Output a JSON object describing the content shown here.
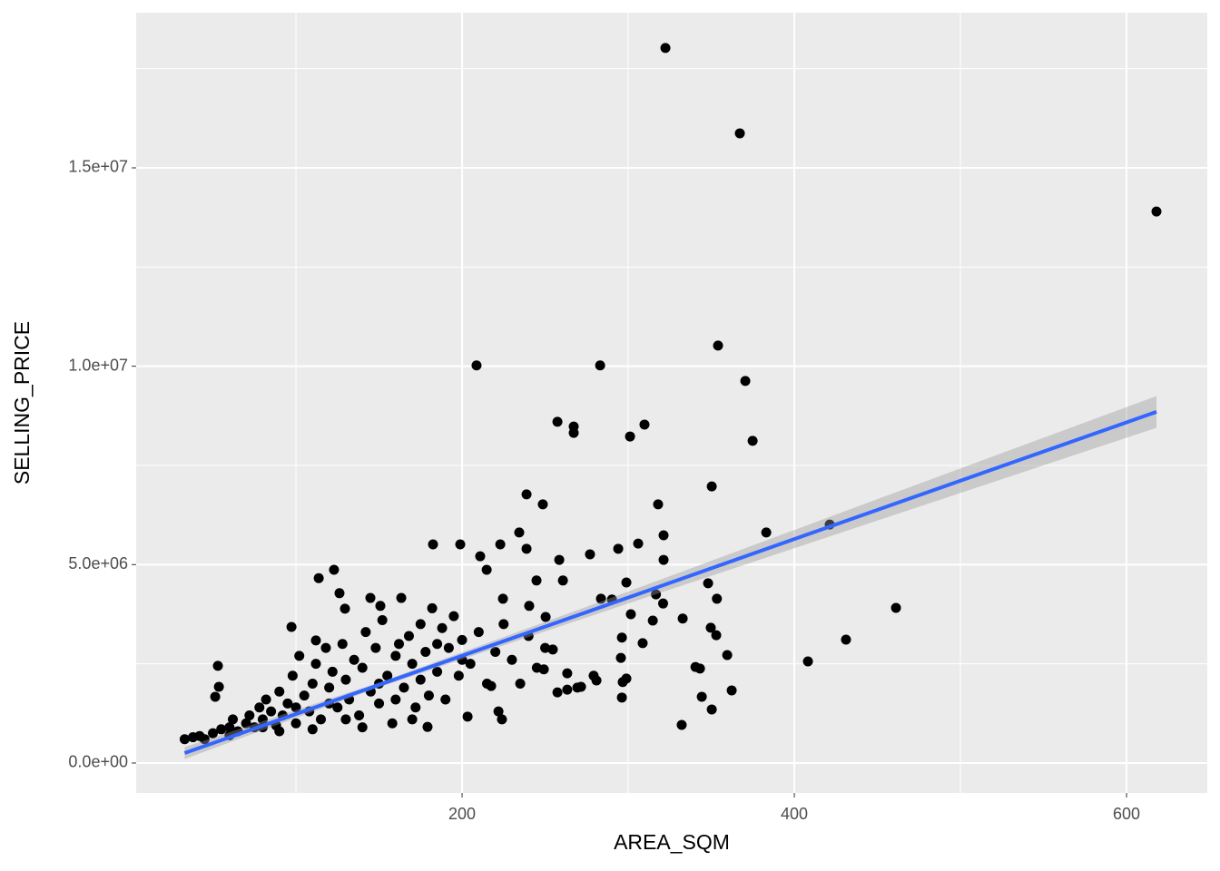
{
  "chart_data": {
    "type": "scatter",
    "x_label": "AREA_SQM",
    "y_label": "SELLING_PRICE",
    "x": [
      322.4,
      367.2,
      618,
      354.1,
      208.7,
      283.1,
      370.5,
      257.4,
      267.2,
      267.2,
      309.8,
      301.1,
      374.9,
      238.8,
      248.6,
      318,
      350.3,
      421.3,
      383.1,
      234.4,
      321.3,
      306,
      294,
      277,
      210.9,
      182.5,
      198.9,
      223,
      258.5,
      321.3,
      238.8,
      214.8,
      122.9,
      113.7,
      244.8,
      260.7,
      298.9,
      348.1,
      126.2,
      144.8,
      163.4,
      283.6,
      290.2,
      353.4,
      316.7,
      321,
      461.2,
      224.6,
      240.4,
      150.8,
      129.5,
      301.6,
      314.8,
      332.8,
      250.3,
      349.7,
      353,
      431.1,
      308.7,
      296.2,
      254.6,
      295.6,
      359.6,
      408.2,
      340.5,
      343.2,
      249.2,
      279.2,
      298.9,
      296.7,
      263.3,
      263.3,
      271.6,
      257.4,
      269.4,
      280.9,
      296.2,
      344.3,
      362.3,
      350.3,
      332.2,
      53,
      53.6,
      51.4,
      97.3,
      112,
      179.2,
      203.3,
      221.9,
      224,
      217.5,
      33,
      38,
      42,
      45,
      50,
      55,
      60,
      62,
      65,
      70,
      72,
      75,
      78,
      80,
      82,
      85,
      88,
      90,
      92,
      95,
      98,
      100,
      102,
      105,
      108,
      110,
      112,
      115,
      118,
      120,
      122,
      125,
      128,
      130,
      132,
      135,
      138,
      140,
      142,
      145,
      148,
      150,
      152,
      155,
      158,
      160,
      162,
      165,
      168,
      170,
      172,
      175,
      178,
      180,
      182,
      185,
      188,
      190,
      192,
      195,
      198,
      200,
      205,
      210,
      215,
      220,
      225,
      230,
      235,
      240,
      245,
      250,
      170,
      140,
      110,
      90,
      60,
      200,
      185,
      175,
      160,
      150,
      130,
      120,
      100,
      80
    ],
    "values": [
      18020000,
      15870000,
      13900000,
      10520000,
      10020000,
      10020000,
      9630000,
      8600000,
      8480000,
      8320000,
      8530000,
      8230000,
      8120000,
      6770000,
      6520000,
      6520000,
      6970000,
      6010000,
      5810000,
      5810000,
      5740000,
      5530000,
      5400000,
      5260000,
      5210000,
      5510000,
      5510000,
      5510000,
      5120000,
      5120000,
      5400000,
      4870000,
      4870000,
      4660000,
      4600000,
      4600000,
      4550000,
      4530000,
      4280000,
      4160000,
      4160000,
      4140000,
      4120000,
      4140000,
      4250000,
      4020000,
      3910000,
      4140000,
      3960000,
      3960000,
      3890000,
      3750000,
      3590000,
      3640000,
      3680000,
      3410000,
      3220000,
      3110000,
      3020000,
      3160000,
      2860000,
      2650000,
      2720000,
      2560000,
      2420000,
      2380000,
      2360000,
      2200000,
      2130000,
      2040000,
      2260000,
      1850000,
      1920000,
      1780000,
      1900000,
      2080000,
      1650000,
      1670000,
      1830000,
      1350000,
      960000,
      2450000,
      1920000,
      1670000,
      3430000,
      3090000,
      910000,
      1170000,
      1300000,
      1100000,
      1940000,
      600000,
      650000,
      680000,
      600000,
      750000,
      850000,
      900000,
      1100000,
      800000,
      1000000,
      1200000,
      900000,
      1400000,
      1100000,
      1600000,
      1300000,
      950000,
      1800000,
      1200000,
      1500000,
      2200000,
      1000000,
      2700000,
      1700000,
      1300000,
      2000000,
      2500000,
      1100000,
      2900000,
      1900000,
      2300000,
      1400000,
      3000000,
      2100000,
      1600000,
      2600000,
      1200000,
      2400000,
      3300000,
      1800000,
      2900000,
      1500000,
      3600000,
      2200000,
      1000000,
      2700000,
      3000000,
      1900000,
      3200000,
      2500000,
      1400000,
      3500000,
      2800000,
      1700000,
      3900000,
      2300000,
      3400000,
      1600000,
      2900000,
      3700000,
      2200000,
      3100000,
      2500000,
      3300000,
      2000000,
      2800000,
      3500000,
      2600000,
      2000000,
      3200000,
      2400000,
      2900000,
      1100000,
      900000,
      850000,
      800000,
      700000,
      2600000,
      3000000,
      2100000,
      1600000,
      2000000,
      1100000,
      1500000,
      1400000,
      900000
    ],
    "color": "#000000",
    "fit": {
      "x": [
        33,
        150,
        300,
        450,
        618
      ],
      "values": [
        250000,
        1970000,
        4170000,
        6380000,
        8850000
      ],
      "lower": [
        100000,
        1910000,
        4020000,
        6110000,
        8450000
      ],
      "upper": [
        400000,
        2030000,
        4320000,
        6650000,
        9250000
      ],
      "color": "#3366ff",
      "band_color": "#999999"
    },
    "xlim": [
      3.8,
      648.6
    ],
    "ylim": [
      -755000,
      18910000
    ],
    "xticks": [
      200,
      400,
      600
    ],
    "yticks": [
      {
        "value": 0,
        "label": "0.0e+00"
      },
      {
        "value": 5000000,
        "label": "5.0e+06"
      },
      {
        "value": 10000000,
        "label": "1.0e+07"
      },
      {
        "value": 15000000,
        "label": "1.5e+07"
      }
    ],
    "x_minor_breaks": [
      100,
      300,
      500
    ],
    "y_minor_breaks": [
      2500000,
      7500000,
      12500000,
      17500000
    ],
    "grid": true
  }
}
